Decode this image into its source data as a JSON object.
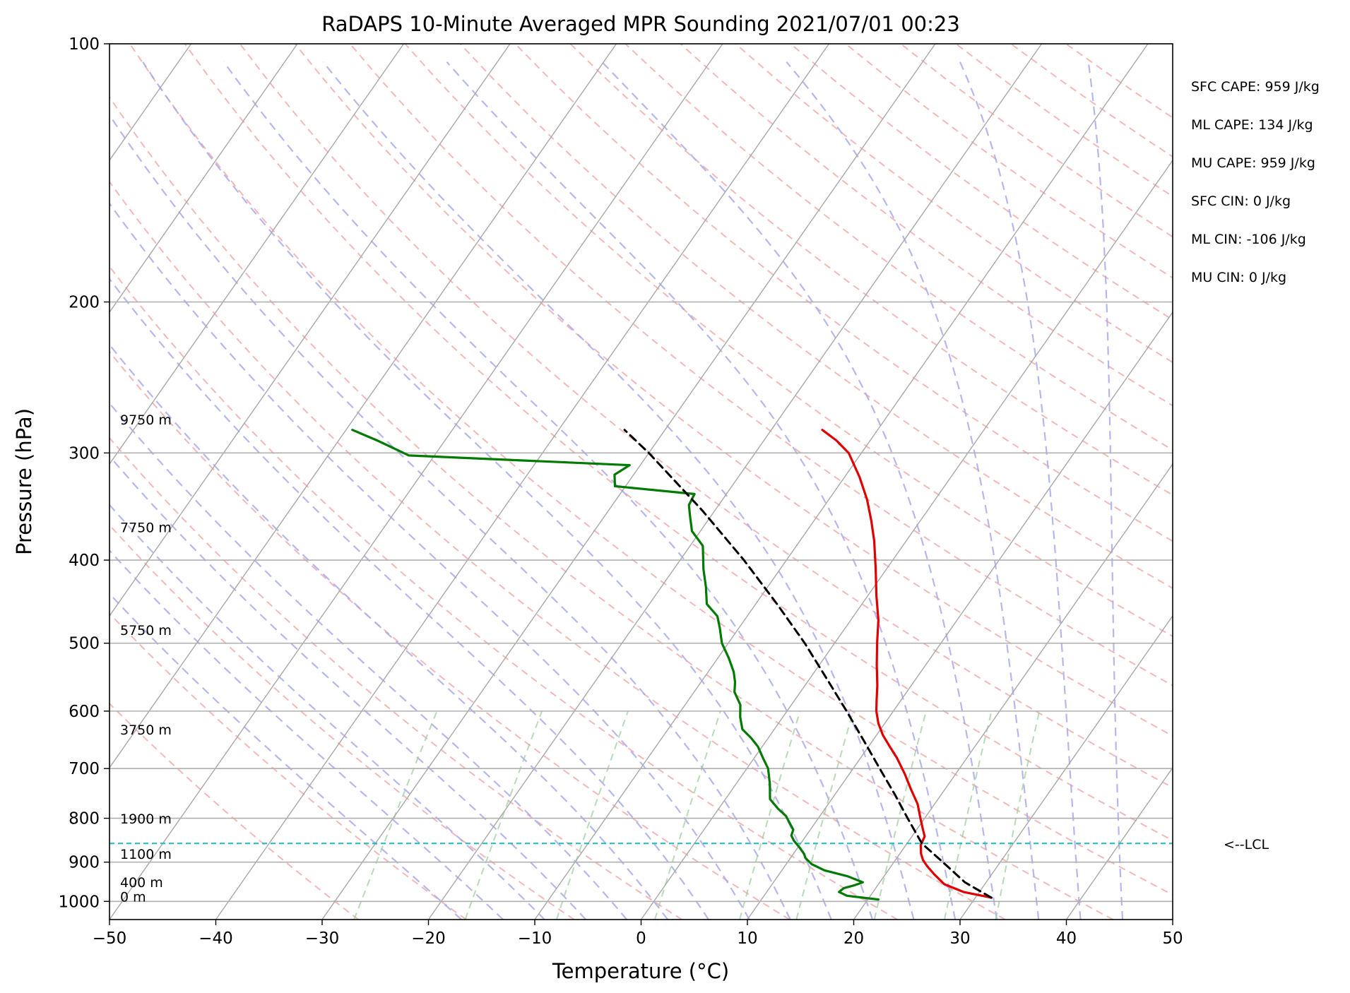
{
  "chart_data": {
    "type": "line",
    "title": "RaDAPS 10-Minute Averaged MPR Sounding 2021/07/01 00:23",
    "xlabel": "Temperature (°C)",
    "ylabel": "Pressure (hPa)",
    "xlim": [
      -50,
      50
    ],
    "ylim": [
      1050,
      100
    ],
    "y_scale": "log",
    "skew": "skew-T",
    "grid": true,
    "x_ticks": [
      -50,
      -40,
      -30,
      -20,
      -10,
      0,
      10,
      20,
      30,
      40,
      50
    ],
    "x_tick_labels": [
      "−50",
      "−40",
      "−30",
      "−20",
      "−10",
      "0",
      "10",
      "20",
      "30",
      "40",
      "50"
    ],
    "y_ticks": [
      1000,
      900,
      800,
      700,
      600,
      500,
      400,
      300,
      200,
      100
    ],
    "y_tick_labels": [
      "1000",
      "900",
      "800",
      "700",
      "600",
      "500",
      "400",
      "300",
      "200",
      "100"
    ],
    "series": [
      {
        "role": "temperature",
        "color": "#e00000",
        "points": [
          {
            "p": 990,
            "t": 31.5
          },
          {
            "p": 975,
            "t": 28.5
          },
          {
            "p": 955,
            "t": 26.2
          },
          {
            "p": 930,
            "t": 24.6
          },
          {
            "p": 910,
            "t": 23.4
          },
          {
            "p": 895,
            "t": 22.6
          },
          {
            "p": 880,
            "t": 22.0
          },
          {
            "p": 860,
            "t": 21.4
          },
          {
            "p": 840,
            "t": 21.2
          },
          {
            "p": 820,
            "t": 20.4
          },
          {
            "p": 800,
            "t": 19.6
          },
          {
            "p": 770,
            "t": 18.4
          },
          {
            "p": 740,
            "t": 16.8
          },
          {
            "p": 710,
            "t": 15.2
          },
          {
            "p": 680,
            "t": 13.4
          },
          {
            "p": 660,
            "t": 12.0
          },
          {
            "p": 640,
            "t": 10.6
          },
          {
            "p": 620,
            "t": 9.4
          },
          {
            "p": 600,
            "t": 8.4
          },
          {
            "p": 580,
            "t": 7.6
          },
          {
            "p": 560,
            "t": 6.8
          },
          {
            "p": 530,
            "t": 5.4
          },
          {
            "p": 500,
            "t": 4.0
          },
          {
            "p": 470,
            "t": 2.6
          },
          {
            "p": 440,
            "t": 0.8
          },
          {
            "p": 410,
            "t": -1.0
          },
          {
            "p": 380,
            "t": -3.0
          },
          {
            "p": 360,
            "t": -4.6
          },
          {
            "p": 340,
            "t": -6.4
          },
          {
            "p": 320,
            "t": -8.6
          },
          {
            "p": 300,
            "t": -11.2
          },
          {
            "p": 290,
            "t": -13.2
          },
          {
            "p": 282,
            "t": -15.2
          }
        ]
      },
      {
        "role": "dewpoint",
        "color": "#007a00",
        "points": [
          {
            "p": 995,
            "t": 21.0
          },
          {
            "p": 985,
            "t": 17.8
          },
          {
            "p": 975,
            "t": 16.8
          },
          {
            "p": 965,
            "t": 17.0
          },
          {
            "p": 958,
            "t": 17.8
          },
          {
            "p": 950,
            "t": 18.4
          },
          {
            "p": 935,
            "t": 16.6
          },
          {
            "p": 920,
            "t": 14.0
          },
          {
            "p": 905,
            "t": 12.4
          },
          {
            "p": 890,
            "t": 11.4
          },
          {
            "p": 880,
            "t": 11.0
          },
          {
            "p": 866,
            "t": 10.2
          },
          {
            "p": 850,
            "t": 9.2
          },
          {
            "p": 838,
            "t": 8.6
          },
          {
            "p": 825,
            "t": 8.4
          },
          {
            "p": 810,
            "t": 7.6
          },
          {
            "p": 795,
            "t": 6.8
          },
          {
            "p": 780,
            "t": 5.6
          },
          {
            "p": 760,
            "t": 4.2
          },
          {
            "p": 730,
            "t": 3.2
          },
          {
            "p": 700,
            "t": 2.0
          },
          {
            "p": 680,
            "t": 0.8
          },
          {
            "p": 660,
            "t": -0.4
          },
          {
            "p": 645,
            "t": -1.6
          },
          {
            "p": 630,
            "t": -3.0
          },
          {
            "p": 610,
            "t": -4.0
          },
          {
            "p": 590,
            "t": -4.8
          },
          {
            "p": 570,
            "t": -6.2
          },
          {
            "p": 555,
            "t": -6.8
          },
          {
            "p": 540,
            "t": -7.6
          },
          {
            "p": 520,
            "t": -9.0
          },
          {
            "p": 500,
            "t": -10.6
          },
          {
            "p": 480,
            "t": -11.8
          },
          {
            "p": 465,
            "t": -12.8
          },
          {
            "p": 450,
            "t": -14.6
          },
          {
            "p": 430,
            "t": -15.8
          },
          {
            "p": 410,
            "t": -17.2
          },
          {
            "p": 385,
            "t": -18.8
          },
          {
            "p": 370,
            "t": -20.8
          },
          {
            "p": 355,
            "t": -22.0
          },
          {
            "p": 345,
            "t": -22.8
          },
          {
            "p": 335,
            "t": -23.0
          },
          {
            "p": 328,
            "t": -31.0
          },
          {
            "p": 318,
            "t": -31.8
          },
          {
            "p": 310,
            "t": -31.0
          },
          {
            "p": 302,
            "t": -52.4
          },
          {
            "p": 290,
            "t": -56.4
          },
          {
            "p": 282,
            "t": -59.4
          }
        ]
      },
      {
        "role": "parcel-profile",
        "color": "#000000",
        "style": "dashed",
        "points": [
          {
            "p": 990,
            "t": 31.5
          },
          {
            "p": 950,
            "t": 28.0
          },
          {
            "p": 900,
            "t": 24.6
          },
          {
            "p": 856,
            "t": 21.4
          },
          {
            "p": 800,
            "t": 18.4
          },
          {
            "p": 750,
            "t": 15.6
          },
          {
            "p": 700,
            "t": 12.5
          },
          {
            "p": 650,
            "t": 9.2
          },
          {
            "p": 600,
            "t": 5.6
          },
          {
            "p": 550,
            "t": 1.6
          },
          {
            "p": 500,
            "t": -2.8
          },
          {
            "p": 450,
            "t": -8.0
          },
          {
            "p": 400,
            "t": -14.0
          },
          {
            "p": 350,
            "t": -21.2
          },
          {
            "p": 300,
            "t": -30.0
          },
          {
            "p": 282,
            "t": -33.8
          }
        ]
      }
    ],
    "lcl_pressure": 856,
    "lcl_label": "<--LCL",
    "height_labels": [
      {
        "p": 1000,
        "text": "0 m"
      },
      {
        "p": 962,
        "text": "400 m"
      },
      {
        "p": 892,
        "text": "1100 m"
      },
      {
        "p": 811,
        "text": "1900 m"
      },
      {
        "p": 639,
        "text": "3750 m"
      },
      {
        "p": 489,
        "text": "5750 m"
      },
      {
        "p": 371,
        "text": "7750 m"
      },
      {
        "p": 278,
        "text": "9750 m"
      }
    ],
    "stats": [
      "SFC CAPE: 959 J/kg",
      "ML CAPE: 134 J/kg",
      "MU CAPE: 959 J/kg",
      "SFC CIN: 0 J/kg",
      "ML CIN: -106 J/kg",
      "MU CIN: 0 J/kg"
    ],
    "background": {
      "isotherm_color": "#a8a8a8",
      "dry_adiabat_color": "#f3a5a5",
      "moist_adiabat_color": "#a9a9ee",
      "mixing_ratio_color": "#9fcf9f",
      "lcl_line_color": "#17bfbf"
    }
  }
}
